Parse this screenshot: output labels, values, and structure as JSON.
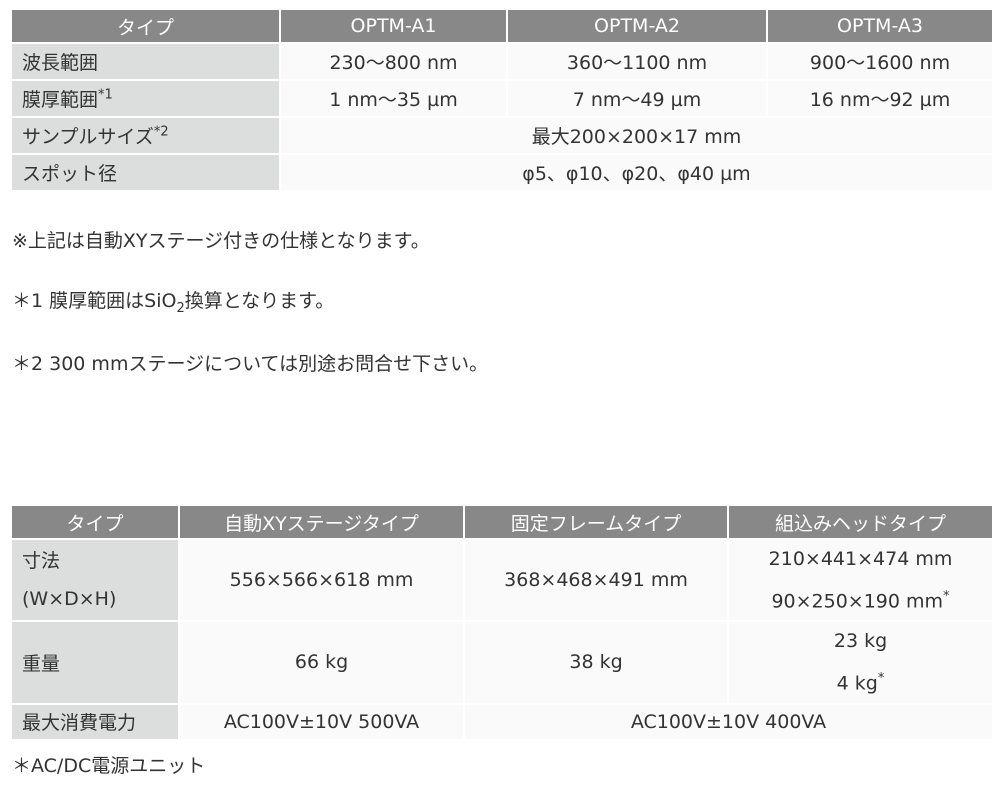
{
  "table1": {
    "headers": [
      "タイプ",
      "OPTM-A1",
      "OPTM-A2",
      "OPTM-A3"
    ],
    "rows": [
      {
        "label": "波長範囲",
        "values": [
          "230〜800 nm",
          "360〜1100 nm",
          "900〜1600 nm"
        ]
      },
      {
        "label": "膜厚範囲",
        "label_sup": "*1",
        "values": [
          "1 nm〜35 µm",
          "7 nm〜49 µm",
          "16 nm〜92 µm"
        ]
      },
      {
        "label": "サンプルサイズ",
        "label_sup": "*2",
        "value": "最大200×200×17 mm"
      },
      {
        "label": "スポット径",
        "value": "φ5、φ10、φ20、φ40 µm"
      }
    ]
  },
  "notes": {
    "n0": "※上記は自動XYステージ付きの仕様となります。",
    "n1_pre": "＊1 膜厚範囲はSiO",
    "n1_sub": "2",
    "n1_post": "換算となります。",
    "n2": "＊2 300 mmステージについては別途お問合せ下さい。",
    "n3": "＊AC/DC電源ユニット"
  },
  "table2": {
    "headers": [
      "タイプ",
      "自動XYステージタイプ",
      "固定フレームタイプ",
      "組込みヘッドタイプ"
    ],
    "rows": [
      {
        "label1": "寸法",
        "label2": "(W×D×H)",
        "values": [
          "556×566×618 mm",
          "368×468×491 mm"
        ],
        "v3a": "210×441×474 mm",
        "v3b": "90×250×190 mm",
        "v3b_sup": "*"
      },
      {
        "label": "重量",
        "values": [
          "66 kg",
          "38 kg"
        ],
        "v3a": "23 kg",
        "v3b": "4 kg",
        "v3b_sup": "*"
      },
      {
        "label": "最大消費電力",
        "v1": "AC100V±10V 500VA",
        "v23": "AC100V±10V 400VA"
      }
    ]
  }
}
